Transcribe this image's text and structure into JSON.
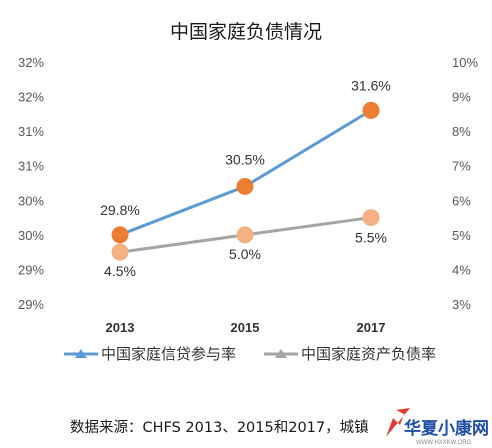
{
  "chart_data": {
    "type": "line",
    "title": "中国家庭负债情况",
    "categories": [
      "2013",
      "2015",
      "2017"
    ],
    "y_left_ticks": [
      "29%",
      "29%",
      "30%",
      "30%",
      "31%",
      "31%",
      "32%",
      "32%"
    ],
    "y_right_ticks": [
      "3%",
      "4%",
      "5%",
      "6%",
      "7%",
      "8%",
      "9%",
      "10%"
    ],
    "y_left_range": [
      28.8,
      32.3
    ],
    "y_right_range": [
      3,
      10
    ],
    "legend_position": "bottom",
    "grid": false,
    "series": [
      {
        "name": "中国家庭信贷参与率",
        "axis": "left",
        "color": "#5b9bd5",
        "marker_color": "#ed7d31",
        "values": [
          29.8,
          30.5,
          31.6
        ],
        "labels": [
          "29.8%",
          "30.5%",
          "31.6%"
        ]
      },
      {
        "name": "中国家庭资产负债率",
        "axis": "right",
        "color": "#a5a5a5",
        "marker_color": "#f4b183",
        "values": [
          4.5,
          5.0,
          5.5
        ],
        "labels": [
          "4.5%",
          "5.0%",
          "5.5%"
        ]
      }
    ]
  },
  "footer": {
    "source": "数据来源：CHFS 2013、2015和2017，城镇"
  },
  "watermark": {
    "text": "华夏小康网",
    "url": "WWW.HXXKW.ORG"
  }
}
